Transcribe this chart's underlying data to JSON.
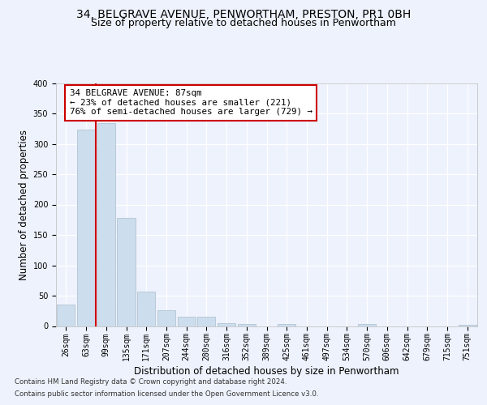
{
  "title_line1": "34, BELGRAVE AVENUE, PENWORTHAM, PRESTON, PR1 0BH",
  "title_line2": "Size of property relative to detached houses in Penwortham",
  "xlabel": "Distribution of detached houses by size in Penwortham",
  "ylabel": "Number of detached properties",
  "bar_color": "#ccdded",
  "bar_edgecolor": "#aabccc",
  "property_line_color": "#cc0000",
  "annotation_line1": "34 BELGRAVE AVENUE: 87sqm",
  "annotation_line2": "← 23% of detached houses are smaller (221)",
  "annotation_line3": "76% of semi-detached houses are larger (729) →",
  "annotation_box_color": "#ffffff",
  "annotation_box_edgecolor": "#cc0000",
  "footnote1": "Contains HM Land Registry data © Crown copyright and database right 2024.",
  "footnote2": "Contains public sector information licensed under the Open Government Licence v3.0.",
  "bin_labels": [
    "26sqm",
    "63sqm",
    "99sqm",
    "135sqm",
    "171sqm",
    "207sqm",
    "244sqm",
    "280sqm",
    "316sqm",
    "352sqm",
    "389sqm",
    "425sqm",
    "461sqm",
    "497sqm",
    "534sqm",
    "570sqm",
    "606sqm",
    "642sqm",
    "679sqm",
    "715sqm",
    "751sqm"
  ],
  "bar_heights": [
    35,
    323,
    334,
    178,
    57,
    26,
    15,
    15,
    5,
    4,
    0,
    4,
    0,
    0,
    0,
    3,
    0,
    0,
    0,
    0,
    2
  ],
  "ylim": [
    0,
    400
  ],
  "yticks": [
    0,
    50,
    100,
    150,
    200,
    250,
    300,
    350,
    400
  ],
  "background_color": "#edf2fc",
  "plot_background": "#edf2fc",
  "grid_color": "#ffffff",
  "title_fontsize": 10,
  "subtitle_fontsize": 9,
  "axis_label_fontsize": 8.5,
  "tick_fontsize": 7,
  "property_line_x": 1.48
}
